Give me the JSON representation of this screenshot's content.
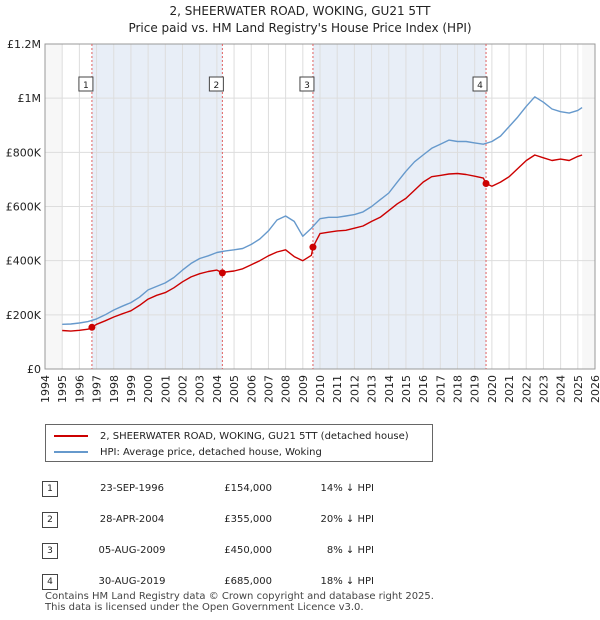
{
  "header": {
    "title": "2, SHEERWATER ROAD, WOKING, GU21 5TT",
    "subtitle": "Price paid vs. HM Land Registry's House Price Index (HPI)"
  },
  "colors": {
    "property_line": "#cc0000",
    "hpi_line": "#6699cc",
    "shade": "#e8eef7",
    "marker_line": "#e06060",
    "grid": "#dddddd"
  },
  "chart_data": {
    "type": "line",
    "title": "2, SHEERWATER ROAD, WOKING, GU21 5TT",
    "subtitle": "Price paid vs. HM Land Registry's House Price Index (HPI)",
    "xlabel": "",
    "ylabel": "",
    "xlim": [
      1994,
      2026
    ],
    "ylim": [
      0,
      1200000
    ],
    "x_ticks": [
      1994,
      1995,
      1996,
      1997,
      1998,
      1999,
      2000,
      2001,
      2002,
      2003,
      2004,
      2005,
      2006,
      2007,
      2008,
      2009,
      2010,
      2011,
      2012,
      2013,
      2014,
      2015,
      2016,
      2017,
      2018,
      2019,
      2020,
      2021,
      2022,
      2023,
      2024,
      2025,
      2026
    ],
    "y_ticks": [
      {
        "value": 0,
        "label": "£0"
      },
      {
        "value": 200000,
        "label": "£200K"
      },
      {
        "value": 400000,
        "label": "£400K"
      },
      {
        "value": 600000,
        "label": "£600K"
      },
      {
        "value": 800000,
        "label": "£800K"
      },
      {
        "value": 1000000,
        "label": "£1M"
      },
      {
        "value": 1200000,
        "label": "£1.2M"
      }
    ],
    "grid": true,
    "data_range": [
      1995.0,
      2025.25
    ],
    "series": [
      {
        "name": "2, SHEERWATER ROAD, WOKING, GU21 5TT (detached house)",
        "color": "#cc0000",
        "x": [
          1995.0,
          1995.5,
          1996.0,
          1996.5,
          1996.73,
          1997.0,
          1997.5,
          1998.0,
          1998.5,
          1999.0,
          1999.5,
          2000.0,
          2000.5,
          2001.0,
          2001.5,
          2002.0,
          2002.5,
          2003.0,
          2003.5,
          2004.0,
          2004.32,
          2004.5,
          2005.0,
          2005.5,
          2006.0,
          2006.5,
          2007.0,
          2007.5,
          2008.0,
          2008.5,
          2009.0,
          2009.5,
          2009.59,
          2010.0,
          2010.5,
          2011.0,
          2011.5,
          2012.0,
          2012.5,
          2013.0,
          2013.5,
          2014.0,
          2014.5,
          2015.0,
          2015.5,
          2016.0,
          2016.5,
          2017.0,
          2017.5,
          2018.0,
          2018.5,
          2019.0,
          2019.5,
          2019.66,
          2020.0,
          2020.5,
          2021.0,
          2021.5,
          2022.0,
          2022.5,
          2023.0,
          2023.5,
          2024.0,
          2024.5,
          2025.0,
          2025.25
        ],
        "y": [
          142000,
          140000,
          143000,
          147000,
          154000,
          165000,
          178000,
          192000,
          204000,
          215000,
          235000,
          258000,
          272000,
          282000,
          300000,
          322000,
          340000,
          352000,
          360000,
          365000,
          355000,
          358000,
          362000,
          370000,
          385000,
          400000,
          418000,
          432000,
          440000,
          415000,
          400000,
          420000,
          450000,
          500000,
          505000,
          510000,
          512000,
          520000,
          528000,
          545000,
          560000,
          585000,
          610000,
          630000,
          660000,
          690000,
          710000,
          715000,
          720000,
          722000,
          718000,
          712000,
          705000,
          685000,
          675000,
          690000,
          710000,
          740000,
          770000,
          790000,
          780000,
          770000,
          775000,
          770000,
          785000,
          790000
        ]
      },
      {
        "name": "HPI: Average price, detached house, Woking",
        "color": "#6699cc",
        "x": [
          1995.0,
          1995.5,
          1996.0,
          1996.5,
          1997.0,
          1997.5,
          1998.0,
          1998.5,
          1999.0,
          1999.5,
          2000.0,
          2000.5,
          2001.0,
          2001.5,
          2002.0,
          2002.5,
          2003.0,
          2003.5,
          2004.0,
          2004.5,
          2005.0,
          2005.5,
          2006.0,
          2006.5,
          2007.0,
          2007.5,
          2008.0,
          2008.5,
          2009.0,
          2009.5,
          2010.0,
          2010.5,
          2011.0,
          2011.5,
          2012.0,
          2012.5,
          2013.0,
          2013.5,
          2014.0,
          2014.5,
          2015.0,
          2015.5,
          2016.0,
          2016.5,
          2017.0,
          2017.5,
          2018.0,
          2018.5,
          2019.0,
          2019.5,
          2020.0,
          2020.5,
          2021.0,
          2021.5,
          2022.0,
          2022.5,
          2023.0,
          2023.5,
          2024.0,
          2024.5,
          2025.0,
          2025.25
        ],
        "y": [
          165000,
          166000,
          170000,
          175000,
          185000,
          200000,
          218000,
          232000,
          245000,
          265000,
          292000,
          305000,
          318000,
          338000,
          365000,
          390000,
          408000,
          418000,
          430000,
          436000,
          440000,
          445000,
          460000,
          480000,
          510000,
          550000,
          565000,
          545000,
          490000,
          520000,
          555000,
          560000,
          560000,
          565000,
          570000,
          580000,
          600000,
          625000,
          650000,
          690000,
          730000,
          765000,
          790000,
          815000,
          830000,
          845000,
          840000,
          840000,
          835000,
          830000,
          840000,
          860000,
          895000,
          930000,
          970000,
          1005000,
          985000,
          960000,
          950000,
          945000,
          955000,
          965000
        ]
      }
    ],
    "sales": [
      {
        "n": "1",
        "x": 1996.73,
        "y": 154000
      },
      {
        "n": "2",
        "x": 2004.32,
        "y": 355000
      },
      {
        "n": "3",
        "x": 2009.59,
        "y": 450000
      },
      {
        "n": "4",
        "x": 2019.66,
        "y": 685000
      }
    ]
  },
  "legend": {
    "items": [
      {
        "label": "2, SHEERWATER ROAD, WOKING, GU21 5TT (detached house)"
      },
      {
        "label": "HPI: Average price, detached house, Woking"
      }
    ]
  },
  "table": {
    "rows": [
      {
        "n": "1",
        "date": "23-SEP-1996",
        "price": "£154,000",
        "pct": "14% ↓ HPI"
      },
      {
        "n": "2",
        "date": "28-APR-2004",
        "price": "£355,000",
        "pct": "20% ↓ HPI"
      },
      {
        "n": "3",
        "date": "05-AUG-2009",
        "price": "£450,000",
        "pct": "8% ↓ HPI"
      },
      {
        "n": "4",
        "date": "30-AUG-2019",
        "price": "£685,000",
        "pct": "18% ↓ HPI"
      }
    ]
  },
  "footer": {
    "line1": "Contains HM Land Registry data © Crown copyright and database right 2025.",
    "line2": "This data is licensed under the Open Government Licence v3.0."
  }
}
